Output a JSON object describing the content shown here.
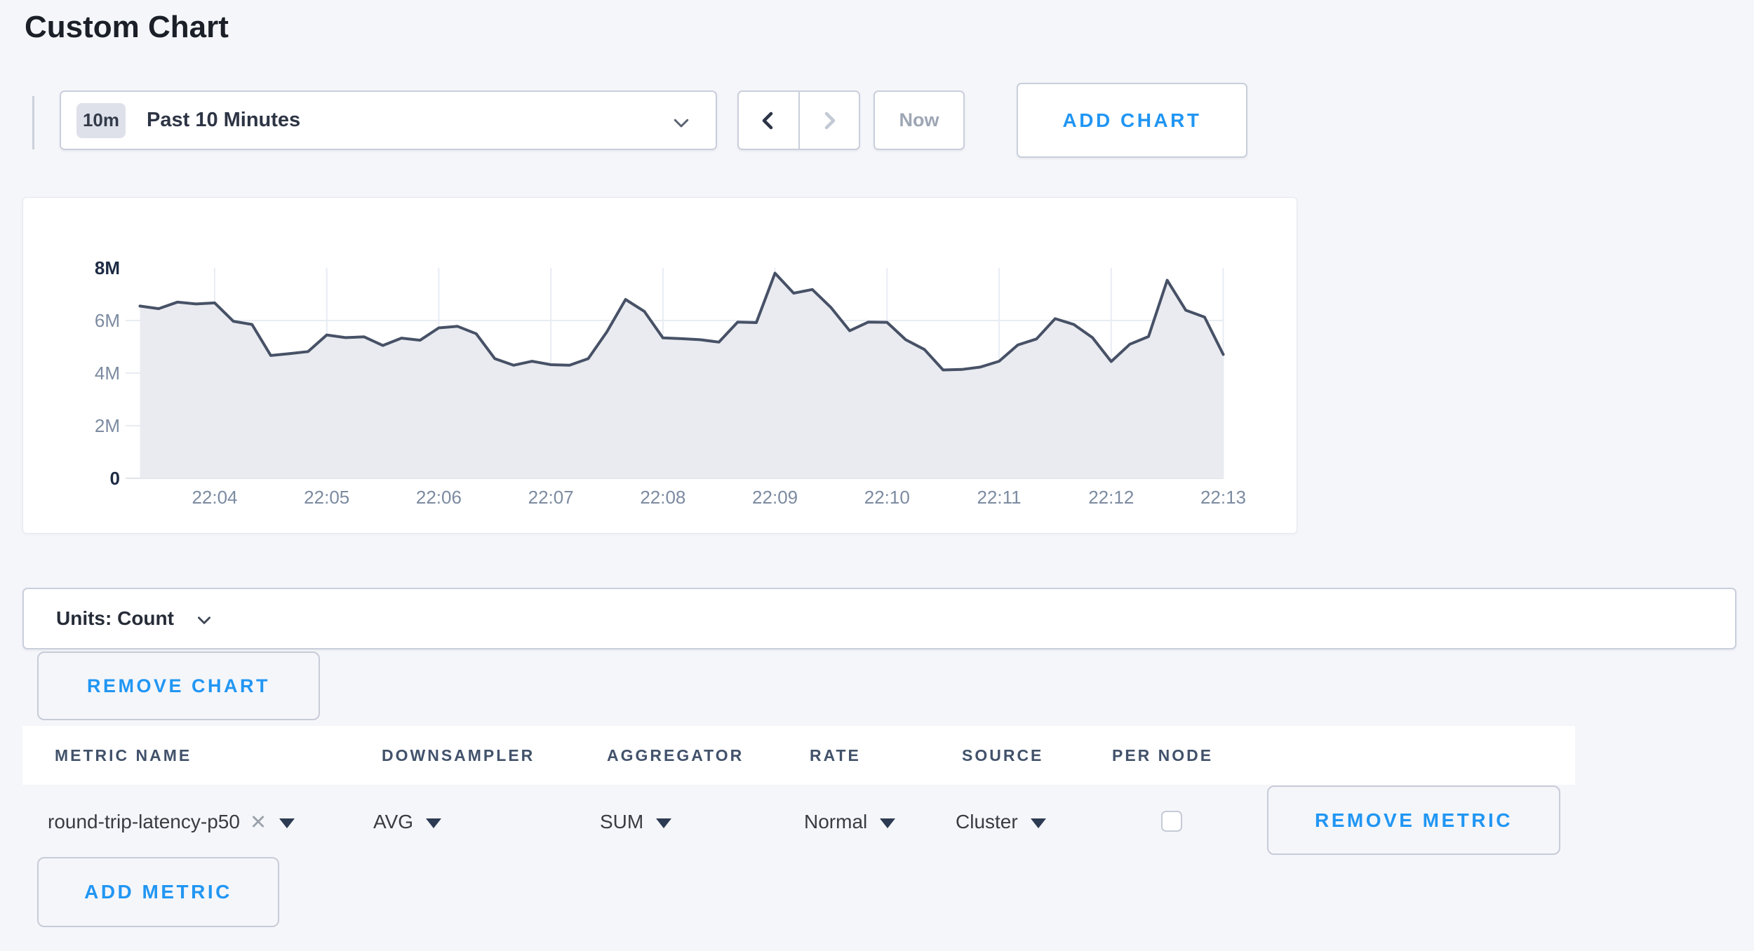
{
  "app": {
    "title": "Custom Chart"
  },
  "icons": {
    "clear_x": "✕"
  },
  "toolbar": {
    "time_badge": "10m",
    "time_label": "Past 10 Minutes",
    "now": "Now",
    "add_chart": "ADD CHART"
  },
  "units_bar": {
    "label": "Units: Count"
  },
  "buttons": {
    "remove_chart": "REMOVE CHART",
    "add_metric": "ADD METRIC"
  },
  "metrics_table": {
    "columns": [
      "METRIC NAME",
      "DOWNSAMPLER",
      "AGGREGATOR",
      "RATE",
      "SOURCE",
      "PER NODE"
    ],
    "row": {
      "metric_name": "round-trip-latency-p50",
      "downsampler": "AVG",
      "aggregator": "SUM",
      "rate": "Normal",
      "source": "Cluster",
      "per_node_checked": false,
      "remove_metric": "REMOVE METRIC"
    }
  },
  "chart_data": {
    "type": "area",
    "title": "",
    "unit": "Count",
    "series_name": "round-trip-latency-p50",
    "x_start": "22:03:20",
    "x_interval_seconds": 10,
    "x_tick_labels": [
      "22:04",
      "22:05",
      "22:06",
      "22:07",
      "22:08",
      "22:09",
      "22:10",
      "22:11",
      "22:12",
      "22:13"
    ],
    "first_tick_index": 4,
    "points_per_tick": 6,
    "y_tick_labels": [
      "0",
      "2M",
      "4M",
      "6M",
      "8M"
    ],
    "ylim_millions": [
      0,
      8
    ],
    "grid": true,
    "legend": false,
    "line_color": "#475166",
    "fill_color": "#e9ebf0",
    "values_millions": [
      6.55,
      6.45,
      6.7,
      6.63,
      6.67,
      5.97,
      5.85,
      4.67,
      4.74,
      4.82,
      5.45,
      5.35,
      5.38,
      5.05,
      5.33,
      5.25,
      5.72,
      5.78,
      5.5,
      4.55,
      4.3,
      4.45,
      4.32,
      4.3,
      4.55,
      5.57,
      6.8,
      6.35,
      5.34,
      5.31,
      5.27,
      5.18,
      5.94,
      5.92,
      7.8,
      7.04,
      7.18,
      6.49,
      5.61,
      5.94,
      5.93,
      5.27,
      4.9,
      4.12,
      4.14,
      4.23,
      4.45,
      5.07,
      5.3,
      6.07,
      5.85,
      5.35,
      4.44,
      5.1,
      5.39,
      7.53,
      6.39,
      6.13,
      4.71
    ]
  }
}
